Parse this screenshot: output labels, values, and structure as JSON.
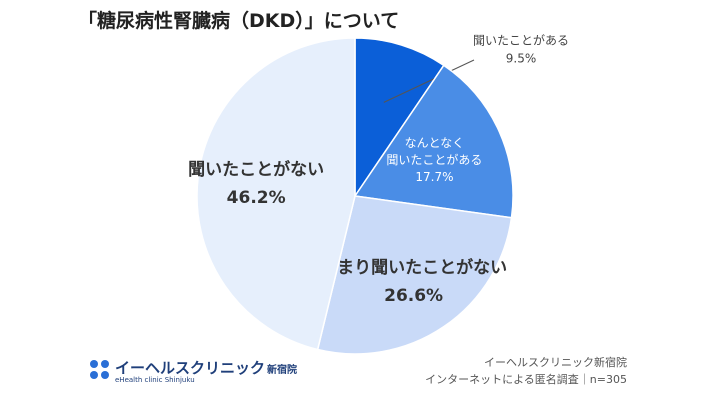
{
  "title": "「糖尿病性腎臓病（DKD）」について",
  "chart_data": {
    "type": "pie",
    "slices": [
      {
        "label_lines": [
          "聞いたことがある"
        ],
        "value": 9.5,
        "value_label": "9.5%",
        "color": "#0b5fd8"
      },
      {
        "label_lines": [
          "なんとなく",
          "聞いたことがある"
        ],
        "value": 17.7,
        "value_label": "17.7%",
        "color": "#4a8de6"
      },
      {
        "label_lines": [
          "あまり聞いたことがない"
        ],
        "value": 26.6,
        "value_label": "26.6%",
        "color": "#c9daf8"
      },
      {
        "label_lines": [
          "聞いたことがない"
        ],
        "value": 46.2,
        "value_label": "46.2%",
        "color": "#e6effc"
      }
    ]
  },
  "footer": {
    "logo_text": "イーヘルスクリニック",
    "logo_suffix": "新宿院",
    "logo_sub": "eHealth clinic Shinjuku",
    "source_line1": "イーヘルスクリニック新宿院",
    "source_line2": "インターネットによる匿名調査｜n=305"
  }
}
